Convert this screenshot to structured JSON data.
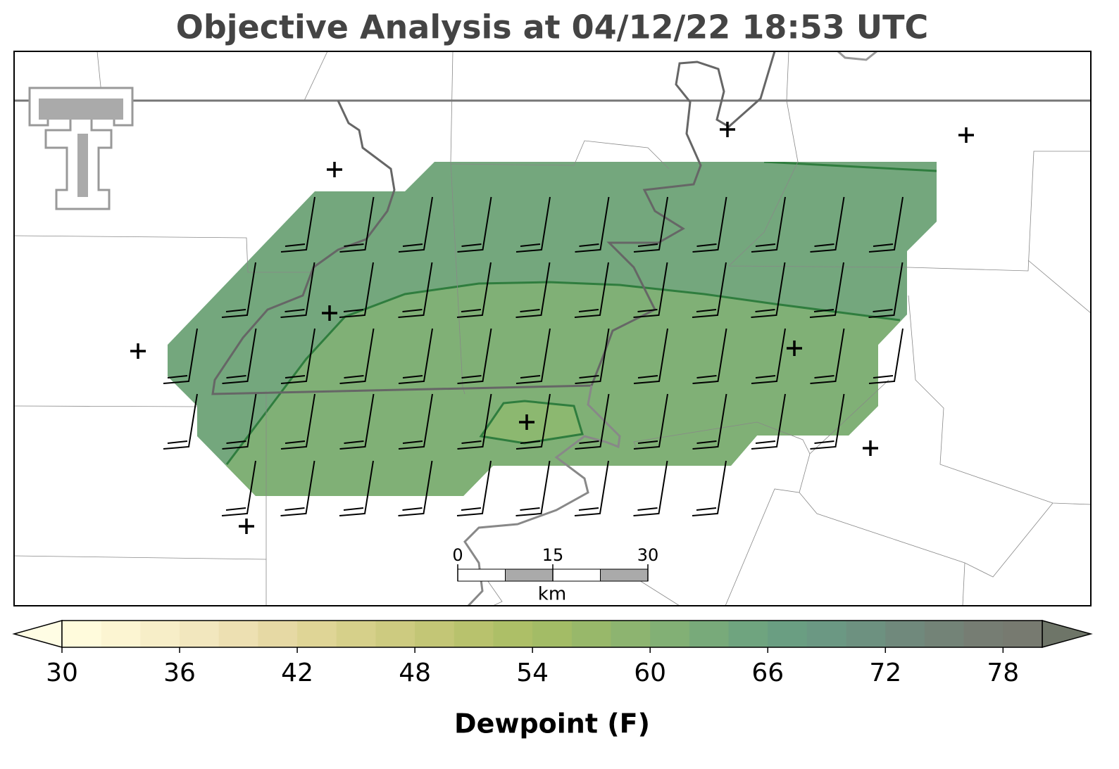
{
  "title": "Objective Analysis at 04/12/22 18:53 UTC",
  "scale_bar": {
    "ticks": [
      0,
      15,
      30
    ],
    "unit": "km"
  },
  "colorbar": {
    "label": "Dewpoint (F)",
    "lim": [
      30,
      80
    ],
    "ticks": [
      30,
      36,
      42,
      48,
      54,
      60,
      66,
      72,
      78
    ],
    "colors": [
      "#fffbdc",
      "#fcf5d2",
      "#f7eec8",
      "#f2e7be",
      "#ede0b2",
      "#e6d9a4",
      "#dfd596",
      "#d6d08a",
      "#cdcb80",
      "#c3c676",
      "#b8c26d",
      "#adbf67",
      "#a3bc66",
      "#98b86a",
      "#8db470",
      "#82b075",
      "#78aa7a",
      "#6fa47f",
      "#6a9e82",
      "#6b9883",
      "#6d9180",
      "#70897c",
      "#738377",
      "#767d73",
      "#777a70"
    ],
    "under_color": "#fffde4",
    "over_color": "#6e7568"
  }
}
